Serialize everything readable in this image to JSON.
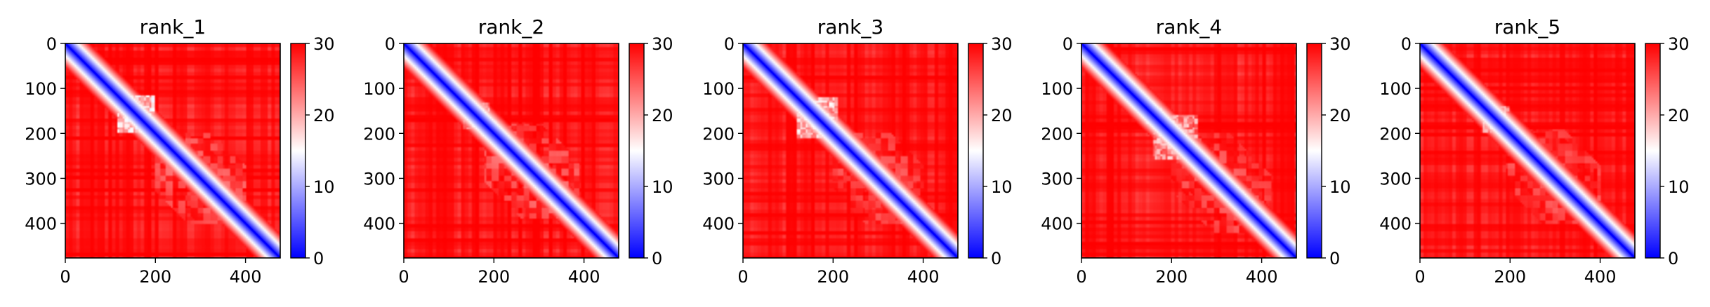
{
  "figure": {
    "colormap": {
      "name": "bwr",
      "low": "#0000ff",
      "mid": "#ffffff",
      "high": "#ff0000"
    },
    "panel_titles": [
      "rank_1",
      "rank_2",
      "rank_3",
      "rank_4",
      "rank_5"
    ]
  },
  "chart_data": [
    {
      "type": "heatmap",
      "title": "rank_1",
      "xlabel": "",
      "ylabel": "",
      "matrix_size": 477,
      "xlim": [
        0,
        477
      ],
      "ylim": [
        477,
        0
      ],
      "xticks": [
        0,
        200,
        400
      ],
      "yticks": [
        0,
        100,
        200,
        300,
        400
      ],
      "colorbar": {
        "range": [
          0,
          30
        ],
        "ticks": [
          0,
          10,
          20,
          30
        ]
      },
      "background_value": 30,
      "diagonal_value": 0,
      "features": [
        {
          "kind": "block",
          "range": [
            115,
            200
          ],
          "value": 14
        },
        {
          "kind": "node",
          "at": 140,
          "value": 4
        },
        {
          "kind": "node",
          "at": 170,
          "value": 4
        },
        {
          "kind": "node",
          "at": 185,
          "value": 6
        },
        {
          "kind": "band",
          "range": [
            200,
            400
          ],
          "value": 22
        },
        {
          "kind": "node",
          "at": 225,
          "value": 5
        },
        {
          "kind": "node",
          "at": 305,
          "value": 6
        },
        {
          "kind": "node",
          "at": 330,
          "value": 5
        },
        {
          "kind": "node",
          "at": 380,
          "value": 6
        }
      ]
    },
    {
      "type": "heatmap",
      "title": "rank_2",
      "xlabel": "",
      "ylabel": "",
      "matrix_size": 477,
      "xlim": [
        0,
        477
      ],
      "ylim": [
        477,
        0
      ],
      "xticks": [
        0,
        200,
        400
      ],
      "yticks": [
        0,
        100,
        200,
        300,
        400
      ],
      "colorbar": {
        "range": [
          0,
          30
        ],
        "ticks": [
          0,
          10,
          20,
          30
        ]
      },
      "background_value": 30,
      "diagonal_value": 0,
      "features": [
        {
          "kind": "block",
          "range": [
            130,
            190
          ],
          "value": 16
        },
        {
          "kind": "node",
          "at": 150,
          "value": 4
        },
        {
          "kind": "node",
          "at": 175,
          "value": 5
        },
        {
          "kind": "band",
          "range": [
            180,
            390
          ],
          "value": 22
        },
        {
          "kind": "node",
          "at": 205,
          "value": 4
        },
        {
          "kind": "node",
          "at": 220,
          "value": 4
        },
        {
          "kind": "node",
          "at": 270,
          "value": 8
        },
        {
          "kind": "node",
          "at": 330,
          "value": 5
        },
        {
          "kind": "node",
          "at": 380,
          "value": 5
        }
      ]
    },
    {
      "type": "heatmap",
      "title": "rank_3",
      "xlabel": "",
      "ylabel": "",
      "matrix_size": 477,
      "xlim": [
        0,
        477
      ],
      "ylim": [
        477,
        0
      ],
      "xticks": [
        0,
        200,
        400
      ],
      "yticks": [
        0,
        100,
        200,
        300,
        400
      ],
      "colorbar": {
        "range": [
          0,
          30
        ],
        "ticks": [
          0,
          10,
          20,
          30
        ]
      },
      "background_value": 30,
      "diagonal_value": 0,
      "features": [
        {
          "kind": "block",
          "range": [
            120,
            210
          ],
          "value": 15
        },
        {
          "kind": "node",
          "at": 140,
          "value": 4
        },
        {
          "kind": "node",
          "at": 160,
          "value": 4
        },
        {
          "kind": "node",
          "at": 180,
          "value": 4
        },
        {
          "kind": "node",
          "at": 200,
          "value": 5
        },
        {
          "kind": "band",
          "range": [
            200,
            400
          ],
          "value": 23
        },
        {
          "kind": "node",
          "at": 225,
          "value": 5
        },
        {
          "kind": "node",
          "at": 330,
          "value": 5
        },
        {
          "kind": "node",
          "at": 380,
          "value": 5
        }
      ]
    },
    {
      "type": "heatmap",
      "title": "rank_4",
      "xlabel": "",
      "ylabel": "",
      "matrix_size": 477,
      "xlim": [
        0,
        477
      ],
      "ylim": [
        477,
        0
      ],
      "xticks": [
        0,
        200,
        400
      ],
      "yticks": [
        0,
        100,
        200,
        300,
        400
      ],
      "colorbar": {
        "range": [
          0,
          30
        ],
        "ticks": [
          0,
          10,
          20,
          30
        ]
      },
      "background_value": 30,
      "diagonal_value": 0,
      "features": [
        {
          "kind": "block",
          "range": [
            160,
            260
          ],
          "value": 17
        },
        {
          "kind": "node",
          "at": 175,
          "value": 4
        },
        {
          "kind": "node",
          "at": 195,
          "value": 5
        },
        {
          "kind": "node",
          "at": 245,
          "value": 4
        },
        {
          "kind": "band",
          "range": [
            200,
            420
          ],
          "value": 23
        },
        {
          "kind": "node",
          "at": 330,
          "value": 5
        },
        {
          "kind": "node",
          "at": 380,
          "value": 5
        },
        {
          "kind": "node",
          "at": 420,
          "value": 6
        }
      ]
    },
    {
      "type": "heatmap",
      "title": "rank_5",
      "xlabel": "",
      "ylabel": "",
      "matrix_size": 477,
      "xlim": [
        0,
        477
      ],
      "ylim": [
        477,
        0
      ],
      "xticks": [
        0,
        200,
        400
      ],
      "yticks": [
        0,
        100,
        200,
        300,
        400
      ],
      "colorbar": {
        "range": [
          0,
          30
        ],
        "ticks": [
          0,
          10,
          20,
          30
        ]
      },
      "background_value": 30,
      "diagonal_value": 0,
      "features": [
        {
          "kind": "block",
          "range": [
            140,
            200
          ],
          "value": 17
        },
        {
          "kind": "node",
          "at": 160,
          "value": 4
        },
        {
          "kind": "node",
          "at": 180,
          "value": 5
        },
        {
          "kind": "band",
          "range": [
            190,
            400
          ],
          "value": 23
        },
        {
          "kind": "node",
          "at": 220,
          "value": 5
        },
        {
          "kind": "node",
          "at": 330,
          "value": 5
        },
        {
          "kind": "node",
          "at": 390,
          "value": 6
        }
      ]
    }
  ]
}
